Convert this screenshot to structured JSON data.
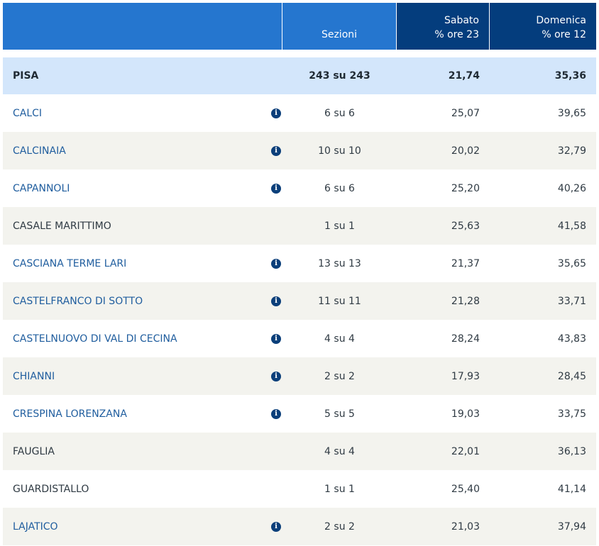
{
  "header": {
    "sections_label": "Sezioni",
    "saturday_label": "Sabato",
    "saturday_sub": "% ore 23",
    "sunday_label": "Domenica",
    "sunday_sub": "% ore 12"
  },
  "total": {
    "name": "PISA",
    "sections": "243 su 243",
    "saturday": "21,74",
    "sunday": "35,36"
  },
  "rows": [
    {
      "name": "CALCI",
      "info": true,
      "sections": "6 su 6",
      "saturday": "25,07",
      "sunday": "39,65"
    },
    {
      "name": "CALCINAIA",
      "info": true,
      "sections": "10 su 10",
      "saturday": "20,02",
      "sunday": "32,79"
    },
    {
      "name": "CAPANNOLI",
      "info": true,
      "sections": "6 su 6",
      "saturday": "25,20",
      "sunday": "40,26"
    },
    {
      "name": "CASALE MARITTIMO",
      "info": false,
      "sections": "1 su 1",
      "saturday": "25,63",
      "sunday": "41,58"
    },
    {
      "name": "CASCIANA TERME LARI",
      "info": true,
      "sections": "13 su 13",
      "saturday": "21,37",
      "sunday": "35,65"
    },
    {
      "name": "CASTELFRANCO DI SOTTO",
      "info": true,
      "sections": "11 su 11",
      "saturday": "21,28",
      "sunday": "33,71"
    },
    {
      "name": "CASTELNUOVO DI VAL DI CECINA",
      "info": true,
      "sections": "4 su 4",
      "saturday": "28,24",
      "sunday": "43,83"
    },
    {
      "name": "CHIANNI",
      "info": true,
      "sections": "2 su 2",
      "saturday": "17,93",
      "sunday": "28,45"
    },
    {
      "name": "CRESPINA LORENZANA",
      "info": true,
      "sections": "5 su 5",
      "saturday": "19,03",
      "sunday": "33,75"
    },
    {
      "name": "FAUGLIA",
      "info": false,
      "sections": "4 su 4",
      "saturday": "22,01",
      "sunday": "36,13"
    },
    {
      "name": "GUARDISTALLO",
      "info": false,
      "sections": "1 su 1",
      "saturday": "25,40",
      "sunday": "41,14"
    },
    {
      "name": "LAJATICO",
      "info": true,
      "sections": "2 su 2",
      "saturday": "21,03",
      "sunday": "37,94"
    }
  ],
  "icons": {
    "info": "info-circle-icon"
  },
  "colors": {
    "header_blue": "#2576cf",
    "header_dark": "#043d7d",
    "total_bg": "#d3e6fb",
    "alt_row_bg": "#f3f3ee",
    "link": "#1f5d9e"
  }
}
